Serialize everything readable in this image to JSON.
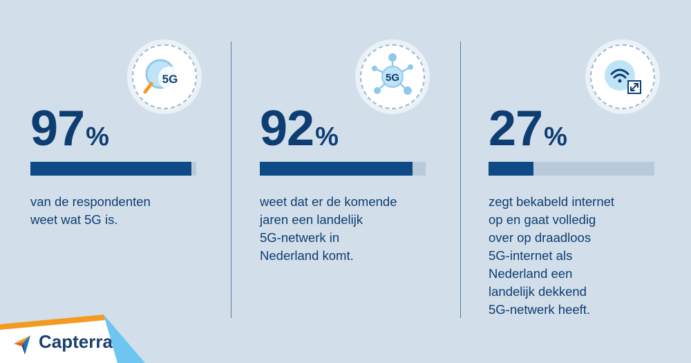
{
  "stats": [
    {
      "icon": "magnifier-5g-icon",
      "icon_label": "5G",
      "number": "97",
      "sign": "%",
      "fill_fraction": 0.97,
      "lines": [
        "van de respondenten",
        "weet wat 5G is."
      ]
    },
    {
      "icon": "network-5g-icon",
      "icon_label": "5G",
      "number": "92",
      "sign": "%",
      "fill_fraction": 0.92,
      "lines": [
        "weet dat er de komende",
        "jaren een landelijk",
        "5G-netwerk in",
        "Nederland komt."
      ]
    },
    {
      "icon": "wifi-switch-icon",
      "number": "27",
      "sign": "%",
      "fill_fraction": 0.27,
      "lines": [
        "zegt bekabeld internet",
        "op en gaat volledig",
        "over op draadloos",
        "5G-internet als",
        "Nederland een",
        "landelijk dekkend",
        "5G-netwerk heeft."
      ]
    }
  ],
  "brand": {
    "name": "Capterra"
  },
  "colors": {
    "background": "#d2dfea",
    "text": "#0e3d72",
    "bar_fill": "#0e4b86",
    "bar_track": "#b9cbdb",
    "accent_orange": "#f39a1f",
    "accent_blue": "#6ec6f0"
  }
}
